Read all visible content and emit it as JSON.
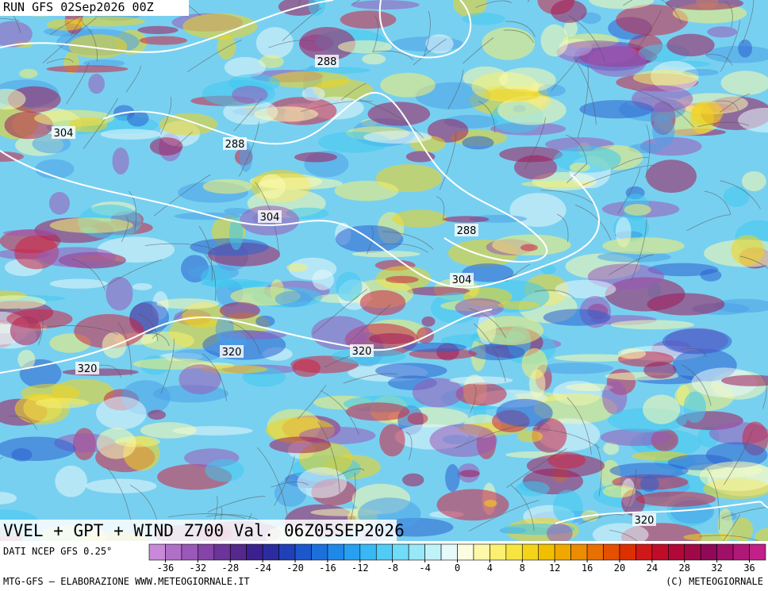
{
  "header": {
    "run": "RUN GFS 02Sep2026 00Z"
  },
  "map": {
    "contour_labels": [
      "288",
      "288",
      "304",
      "304",
      "288",
      "304",
      "320",
      "320",
      "320",
      "320"
    ]
  },
  "title": "VVEL + GPT + WIND Z700 Val. 06Z05SEP2026",
  "colorbar": {
    "source": "DATI NCEP GFS 0.25°",
    "range": [
      -38,
      38
    ],
    "ticks": [
      -36,
      -32,
      -28,
      -24,
      -20,
      -16,
      -12,
      -8,
      -4,
      0,
      4,
      8,
      12,
      16,
      20,
      24,
      28,
      32,
      36
    ],
    "colors": [
      "#c88ad8",
      "#b070c8",
      "#9a58b8",
      "#8444a8",
      "#6c3498",
      "#54288c",
      "#3c2090",
      "#2c2ca0",
      "#2040b8",
      "#1c58cc",
      "#1c70dc",
      "#2088e8",
      "#28a0f0",
      "#38b8f4",
      "#50ccf6",
      "#70dcf8",
      "#98e8f8",
      "#c0f2fa",
      "#e6fafc",
      "#fcfce0",
      "#fcf8a8",
      "#fcf070",
      "#f8e440",
      "#f4d418",
      "#f0c000",
      "#f0a800",
      "#ec8c00",
      "#e87000",
      "#e45000",
      "#dc3000",
      "#d01818",
      "#c00c28",
      "#b00838",
      "#a00848",
      "#900858",
      "#a01068",
      "#b01878",
      "#c02088"
    ]
  },
  "footer": {
    "left": "MTG-GFS — ELABORAZIONE WWW.METEOGIORNALE.IT",
    "right": "(C) METEOGIORNALE"
  }
}
